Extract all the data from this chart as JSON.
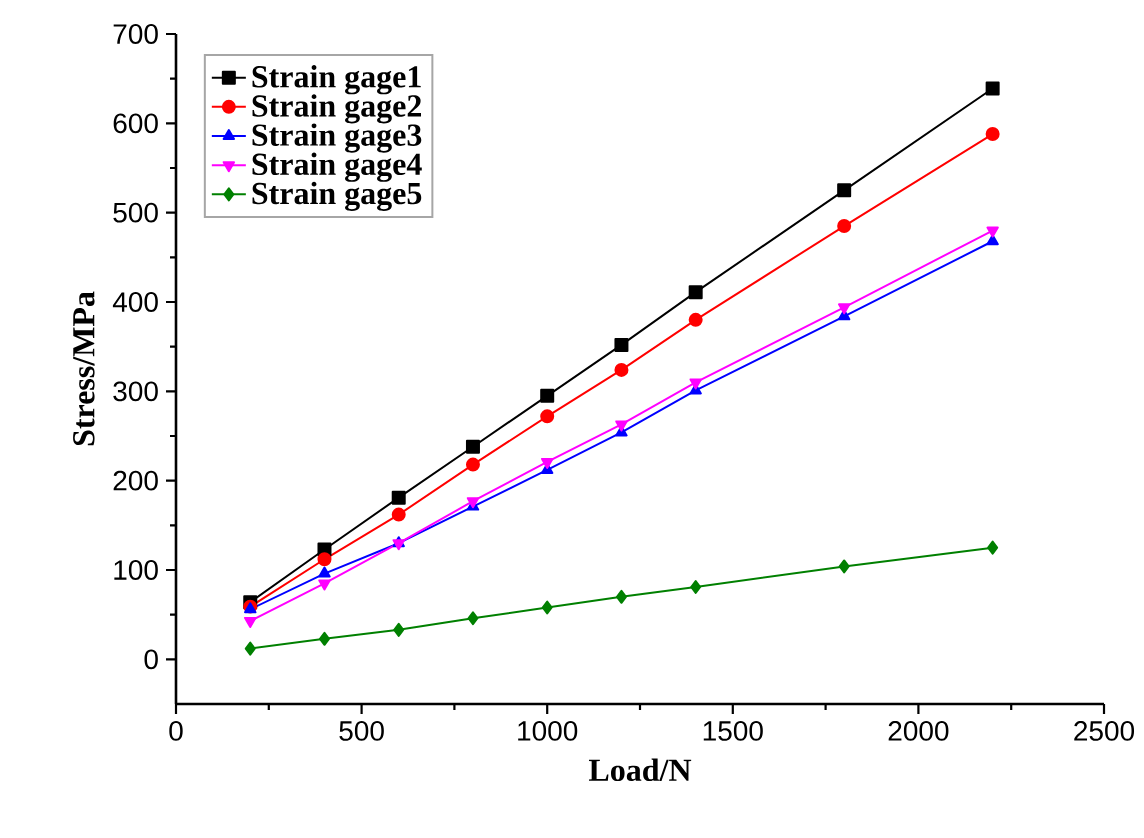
{
  "chart_data": {
    "type": "line",
    "xlabel": "Load/N",
    "ylabel": "Stress/MPa",
    "x": [
      200,
      400,
      600,
      800,
      1000,
      1200,
      1400,
      1800,
      2200
    ],
    "series": [
      {
        "name": "Strain gage1",
        "color": "#000000",
        "marker": "square",
        "values": [
          64,
          123,
          181,
          238,
          295,
          352,
          411,
          525,
          639
        ]
      },
      {
        "name": "Strain gage2",
        "color": "#ff0000",
        "marker": "circle",
        "values": [
          59,
          112,
          162,
          218,
          272,
          324,
          380,
          485,
          588
        ]
      },
      {
        "name": "Strain gage3",
        "color": "#0000ff",
        "marker": "triangle",
        "values": [
          56,
          96,
          130,
          171,
          212,
          254,
          301,
          384,
          468
        ]
      },
      {
        "name": "Strain gage4",
        "color": "#ff00ff",
        "marker": "triangle-down",
        "values": [
          43,
          85,
          130,
          177,
          221,
          263,
          310,
          394,
          480
        ]
      },
      {
        "name": "Strain gage5",
        "color": "#008000",
        "marker": "diamond",
        "values": [
          12,
          23,
          33,
          46,
          58,
          70,
          81,
          104,
          125
        ]
      }
    ],
    "xlim": [
      0,
      2500
    ],
    "xticks": [
      0,
      500,
      1000,
      1500,
      2000,
      2500
    ],
    "ylim": [
      -50,
      700
    ],
    "yticks": [
      0,
      100,
      200,
      300,
      400,
      500,
      600,
      700
    ],
    "grid": false,
    "legend": "top left",
    "line_style": "solid"
  }
}
